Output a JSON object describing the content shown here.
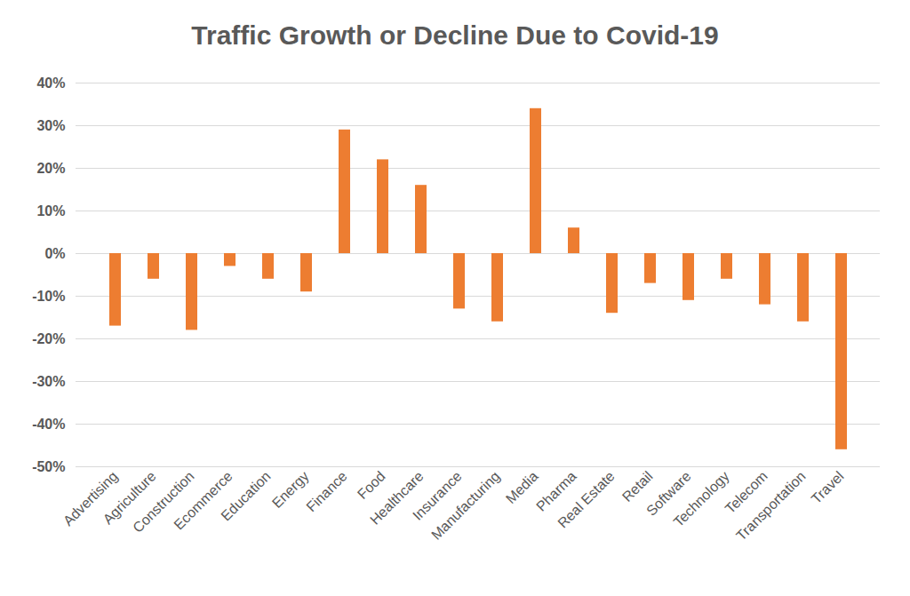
{
  "chart_data": {
    "type": "bar",
    "title": "Traffic Growth or Decline Due to Covid-19",
    "categories": [
      "Advertising",
      "Agriculture",
      "Construction",
      "Ecommerce",
      "Education",
      "Energy",
      "Finance",
      "Food",
      "Healthcare",
      "Insurance",
      "Manufacturing",
      "Media",
      "Pharma",
      "Real Estate",
      "Retail",
      "Software",
      "Technology",
      "Telecom",
      "Transportation",
      "Travel"
    ],
    "values": [
      -17,
      -6,
      -18,
      -3,
      -6,
      -9,
      29,
      22,
      16,
      -13,
      -16,
      34,
      6,
      -14,
      -7,
      -11,
      -6,
      -12,
      -16,
      -46
    ],
    "color": "#ed7d31",
    "ylim": [
      -50,
      40
    ],
    "yticks": [
      {
        "value": -50,
        "label": "-50%"
      },
      {
        "value": -40,
        "label": "-40%"
      },
      {
        "value": -30,
        "label": "-30%"
      },
      {
        "value": -20,
        "label": "-20%"
      },
      {
        "value": -10,
        "label": "-10%"
      },
      {
        "value": 0,
        "label": "0%"
      },
      {
        "value": 10,
        "label": "10%"
      },
      {
        "value": 20,
        "label": "20%"
      },
      {
        "value": 30,
        "label": "30%"
      },
      {
        "value": 40,
        "label": "40%"
      }
    ],
    "grid": true
  }
}
